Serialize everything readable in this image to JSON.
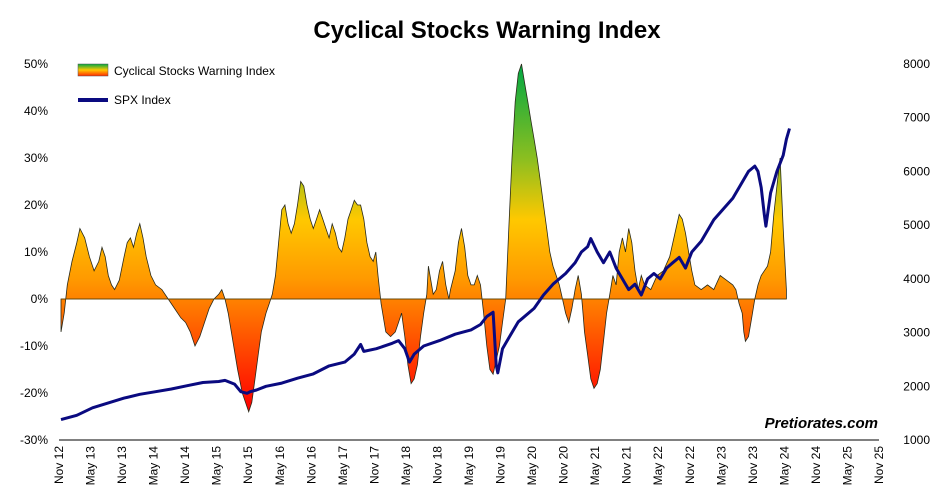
{
  "chart_data": {
    "type": "area",
    "title": "Cyclical Stocks Warning Index",
    "watermark": "Pretiorates.com",
    "legend": [
      {
        "name": "Cyclical Stocks Warning Index",
        "kind": "gradient-area"
      },
      {
        "name": "SPX Index",
        "kind": "line",
        "color": "#0a0a80"
      }
    ],
    "y_left": {
      "min": -30,
      "max": 50,
      "ticks": [
        "-30%",
        "-20%",
        "-10%",
        "0%",
        "10%",
        "20%",
        "30%",
        "40%",
        "50%"
      ]
    },
    "y_right": {
      "min": 1000,
      "max": 8000,
      "ticks": [
        "1000",
        "2000",
        "3000",
        "4000",
        "5000",
        "6000",
        "7000",
        "8000"
      ]
    },
    "x_ticks": [
      "Nov 12",
      "May 13",
      "Nov 13",
      "May 14",
      "Nov 14",
      "May 15",
      "Nov 15",
      "May 16",
      "Nov 16",
      "May 17",
      "Nov 17",
      "May 18",
      "Nov 18",
      "May 19",
      "Nov 19",
      "May 20",
      "Nov 20",
      "May 21",
      "Nov 21",
      "May 22",
      "Nov 22",
      "May 23",
      "Nov 23",
      "May 24",
      "Nov 24",
      "May 25",
      "Nov 25"
    ],
    "gradient_colors": {
      "bottom": "#ff0000",
      "mid": "#ff9900",
      "upper": "#ffcc00",
      "top": "#00aa44"
    },
    "series": [
      {
        "name": "Cyclical Stocks Warning Index",
        "unit": "%",
        "points": [
          [
            0,
            -7
          ],
          [
            0.1,
            -3
          ],
          [
            0.2,
            3
          ],
          [
            0.35,
            8
          ],
          [
            0.5,
            12
          ],
          [
            0.6,
            15
          ],
          [
            0.75,
            13
          ],
          [
            0.9,
            9
          ],
          [
            1.05,
            6
          ],
          [
            1.2,
            8
          ],
          [
            1.3,
            11
          ],
          [
            1.4,
            9
          ],
          [
            1.5,
            5
          ],
          [
            1.6,
            3
          ],
          [
            1.7,
            2
          ],
          [
            1.85,
            4
          ],
          [
            2,
            9
          ],
          [
            2.1,
            12
          ],
          [
            2.2,
            13
          ],
          [
            2.3,
            11
          ],
          [
            2.4,
            14
          ],
          [
            2.5,
            16
          ],
          [
            2.6,
            13
          ],
          [
            2.7,
            9
          ],
          [
            2.85,
            5
          ],
          [
            3,
            3
          ],
          [
            3.2,
            2
          ],
          [
            3.4,
            0
          ],
          [
            3.6,
            -2
          ],
          [
            3.8,
            -4
          ],
          [
            3.95,
            -5
          ],
          [
            4.1,
            -7
          ],
          [
            4.25,
            -10
          ],
          [
            4.4,
            -8
          ],
          [
            4.55,
            -5
          ],
          [
            4.7,
            -2
          ],
          [
            4.85,
            0
          ],
          [
            5,
            1
          ],
          [
            5.1,
            2
          ],
          [
            5.2,
            0
          ],
          [
            5.3,
            -3
          ],
          [
            5.45,
            -9
          ],
          [
            5.6,
            -15
          ],
          [
            5.75,
            -20
          ],
          [
            5.85,
            -22
          ],
          [
            5.95,
            -24
          ],
          [
            6.05,
            -22
          ],
          [
            6.15,
            -17
          ],
          [
            6.25,
            -12
          ],
          [
            6.35,
            -7
          ],
          [
            6.5,
            -3
          ],
          [
            6.6,
            -1
          ],
          [
            6.7,
            1
          ],
          [
            6.8,
            5
          ],
          [
            6.9,
            12
          ],
          [
            7,
            19
          ],
          [
            7.1,
            20
          ],
          [
            7.2,
            16
          ],
          [
            7.3,
            14
          ],
          [
            7.4,
            16
          ],
          [
            7.5,
            20
          ],
          [
            7.6,
            25
          ],
          [
            7.7,
            24
          ],
          [
            7.8,
            20
          ],
          [
            7.9,
            17
          ],
          [
            8,
            15
          ],
          [
            8.1,
            17
          ],
          [
            8.2,
            19
          ],
          [
            8.3,
            17
          ],
          [
            8.4,
            15
          ],
          [
            8.5,
            13
          ],
          [
            8.6,
            16
          ],
          [
            8.7,
            14
          ],
          [
            8.8,
            11
          ],
          [
            8.9,
            10
          ],
          [
            9,
            13
          ],
          [
            9.1,
            17
          ],
          [
            9.2,
            19
          ],
          [
            9.3,
            21
          ],
          [
            9.4,
            20
          ],
          [
            9.5,
            20
          ],
          [
            9.6,
            17
          ],
          [
            9.7,
            12
          ],
          [
            9.8,
            9
          ],
          [
            9.9,
            8
          ],
          [
            9.98,
            10
          ],
          [
            10.05,
            5
          ],
          [
            10.15,
            -1
          ],
          [
            10.3,
            -7
          ],
          [
            10.45,
            -8
          ],
          [
            10.6,
            -7
          ],
          [
            10.7,
            -5
          ],
          [
            10.8,
            -3
          ],
          [
            10.9,
            -8
          ],
          [
            11,
            -14
          ],
          [
            11.1,
            -18
          ],
          [
            11.2,
            -17
          ],
          [
            11.3,
            -14
          ],
          [
            11.4,
            -8
          ],
          [
            11.5,
            -3
          ],
          [
            11.6,
            1
          ],
          [
            11.65,
            7
          ],
          [
            11.7,
            5
          ],
          [
            11.8,
            1
          ],
          [
            11.9,
            2
          ],
          [
            12,
            6
          ],
          [
            12.1,
            8
          ],
          [
            12.2,
            3
          ],
          [
            12.3,
            0
          ],
          [
            12.35,
            2
          ],
          [
            12.5,
            6
          ],
          [
            12.6,
            12
          ],
          [
            12.7,
            15
          ],
          [
            12.8,
            11
          ],
          [
            12.9,
            5
          ],
          [
            13,
            3
          ],
          [
            13.1,
            3
          ],
          [
            13.2,
            5
          ],
          [
            13.3,
            3
          ],
          [
            13.4,
            -3
          ],
          [
            13.5,
            -10
          ],
          [
            13.6,
            -15
          ],
          [
            13.7,
            -16
          ],
          [
            13.8,
            -13
          ],
          [
            13.9,
            -10
          ],
          [
            14,
            -5
          ],
          [
            14.1,
            0
          ],
          [
            14.2,
            15
          ],
          [
            14.3,
            30
          ],
          [
            14.4,
            42
          ],
          [
            14.5,
            48
          ],
          [
            14.6,
            50
          ],
          [
            14.7,
            46
          ],
          [
            14.8,
            42
          ],
          [
            14.9,
            38
          ],
          [
            15,
            34
          ],
          [
            15.1,
            30
          ],
          [
            15.2,
            25
          ],
          [
            15.3,
            20
          ],
          [
            15.4,
            15
          ],
          [
            15.5,
            10
          ],
          [
            15.6,
            7
          ],
          [
            15.7,
            5
          ],
          [
            15.8,
            3
          ],
          [
            15.9,
            0
          ],
          [
            16,
            -3
          ],
          [
            16.1,
            -5
          ],
          [
            16.2,
            -2
          ],
          [
            16.3,
            2
          ],
          [
            16.4,
            5
          ],
          [
            16.5,
            1
          ],
          [
            16.55,
            -3
          ],
          [
            16.6,
            -7
          ],
          [
            16.7,
            -12
          ],
          [
            16.8,
            -17
          ],
          [
            16.9,
            -19
          ],
          [
            17,
            -18
          ],
          [
            17.1,
            -15
          ],
          [
            17.2,
            -9
          ],
          [
            17.3,
            -3
          ],
          [
            17.4,
            1
          ],
          [
            17.5,
            5
          ],
          [
            17.6,
            3
          ],
          [
            17.7,
            10
          ],
          [
            17.8,
            13
          ],
          [
            17.9,
            10
          ],
          [
            18,
            15
          ],
          [
            18.1,
            12
          ],
          [
            18.2,
            6
          ],
          [
            18.3,
            2
          ],
          [
            18.4,
            5
          ],
          [
            18.5,
            3
          ],
          [
            18.7,
            2
          ],
          [
            18.9,
            5
          ],
          [
            19.1,
            6
          ],
          [
            19.3,
            9
          ],
          [
            19.5,
            15
          ],
          [
            19.6,
            18
          ],
          [
            19.7,
            17
          ],
          [
            19.8,
            14
          ],
          [
            19.9,
            10
          ],
          [
            20,
            6
          ],
          [
            20.1,
            3
          ],
          [
            20.3,
            2
          ],
          [
            20.5,
            3
          ],
          [
            20.7,
            2
          ],
          [
            20.9,
            5
          ],
          [
            21.1,
            4
          ],
          [
            21.3,
            3
          ],
          [
            21.4,
            2
          ],
          [
            21.5,
            -1
          ],
          [
            21.6,
            -3
          ],
          [
            21.65,
            -7
          ],
          [
            21.7,
            -9
          ],
          [
            21.8,
            -8
          ],
          [
            21.9,
            -4
          ],
          [
            22,
            0
          ],
          [
            22.1,
            3
          ],
          [
            22.2,
            5
          ],
          [
            22.4,
            7
          ],
          [
            22.5,
            10
          ],
          [
            22.6,
            18
          ],
          [
            22.7,
            24
          ],
          [
            22.8,
            30
          ],
          [
            22.9,
            15
          ],
          [
            23,
            2
          ]
        ]
      },
      {
        "name": "SPX Index",
        "unit": "index points",
        "points": [
          [
            0,
            1380
          ],
          [
            0.5,
            1460
          ],
          [
            1,
            1600
          ],
          [
            1.5,
            1690
          ],
          [
            2,
            1780
          ],
          [
            2.5,
            1850
          ],
          [
            3,
            1900
          ],
          [
            3.5,
            1950
          ],
          [
            4,
            2010
          ],
          [
            4.5,
            2070
          ],
          [
            5,
            2090
          ],
          [
            5.2,
            2110
          ],
          [
            5.5,
            2040
          ],
          [
            5.7,
            1900
          ],
          [
            5.9,
            1870
          ],
          [
            6,
            1900
          ],
          [
            6.2,
            1930
          ],
          [
            6.5,
            2000
          ],
          [
            7,
            2060
          ],
          [
            7.5,
            2150
          ],
          [
            8,
            2230
          ],
          [
            8.5,
            2380
          ],
          [
            9,
            2450
          ],
          [
            9.3,
            2600
          ],
          [
            9.5,
            2780
          ],
          [
            9.6,
            2650
          ],
          [
            10,
            2700
          ],
          [
            10.5,
            2800
          ],
          [
            10.7,
            2850
          ],
          [
            10.9,
            2700
          ],
          [
            11.05,
            2450
          ],
          [
            11.2,
            2600
          ],
          [
            11.5,
            2750
          ],
          [
            12,
            2850
          ],
          [
            12.5,
            2970
          ],
          [
            13,
            3050
          ],
          [
            13.3,
            3150
          ],
          [
            13.5,
            3300
          ],
          [
            13.7,
            3380
          ],
          [
            13.8,
            2400
          ],
          [
            13.85,
            2250
          ],
          [
            14,
            2700
          ],
          [
            14.2,
            2900
          ],
          [
            14.5,
            3200
          ],
          [
            15,
            3450
          ],
          [
            15.3,
            3700
          ],
          [
            15.6,
            3900
          ],
          [
            16,
            4100
          ],
          [
            16.3,
            4300
          ],
          [
            16.5,
            4500
          ],
          [
            16.7,
            4600
          ],
          [
            16.8,
            4750
          ],
          [
            17,
            4500
          ],
          [
            17.2,
            4300
          ],
          [
            17.4,
            4500
          ],
          [
            17.6,
            4200
          ],
          [
            17.8,
            4000
          ],
          [
            18,
            3800
          ],
          [
            18.2,
            3900
          ],
          [
            18.4,
            3700
          ],
          [
            18.6,
            4000
          ],
          [
            18.8,
            4100
          ],
          [
            19,
            4000
          ],
          [
            19.2,
            4200
          ],
          [
            19.4,
            4300
          ],
          [
            19.6,
            4400
          ],
          [
            19.8,
            4200
          ],
          [
            20,
            4500
          ],
          [
            20.3,
            4700
          ],
          [
            20.5,
            4900
          ],
          [
            20.7,
            5100
          ],
          [
            21,
            5300
          ],
          [
            21.3,
            5500
          ],
          [
            21.5,
            5700
          ],
          [
            21.8,
            6000
          ],
          [
            22,
            6100
          ],
          [
            22.1,
            6000
          ],
          [
            22.2,
            5700
          ],
          [
            22.3,
            5200
          ],
          [
            22.35,
            4980
          ],
          [
            22.5,
            5600
          ],
          [
            22.7,
            6000
          ],
          [
            22.9,
            6300
          ],
          [
            23,
            6600
          ],
          [
            23.1,
            6800
          ]
        ]
      }
    ]
  }
}
